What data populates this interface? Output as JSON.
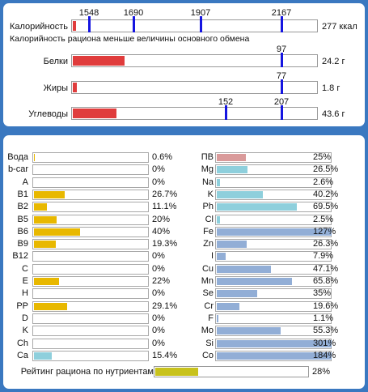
{
  "energy": {
    "calories_label": "Калорийность",
    "calories_value": "277 ккал",
    "calories_fraction": 0.0,
    "calories_marks": [
      "1548",
      "1690",
      "1907",
      "2167"
    ],
    "note": "Калорийность рациона меньше величины основного обмена",
    "proteins_label": "Белки",
    "proteins_value": "24.2 г",
    "proteins_mark": "97",
    "fats_label": "Жиры",
    "fats_value": "1.8 г",
    "fats_mark": "77",
    "carbs_label": "Углеводы",
    "carbs_value": "43.6 г",
    "carbs_marks": [
      "152",
      "207"
    ]
  },
  "colors": {
    "red": "#e03c3c",
    "yellow": "#e8b800",
    "light_blue": "#8ecfdc",
    "steel_blue": "#92aed6",
    "pink": "#d99a9a",
    "olive": "#c8c21c",
    "marker_blue": "#1515e0",
    "background_blue": "#3a78c0"
  },
  "vitamins": [
    {
      "name": "Вода",
      "value": "0.6%",
      "pct": 0.6,
      "color": "#e8b800"
    },
    {
      "name": "b-car",
      "value": "0%",
      "pct": 0,
      "color": "#e8b800"
    },
    {
      "name": "A",
      "value": "0%",
      "pct": 0,
      "color": "#e8b800"
    },
    {
      "name": "B1",
      "value": "26.7%",
      "pct": 26.7,
      "color": "#e8b800"
    },
    {
      "name": "B2",
      "value": "11.1%",
      "pct": 11.1,
      "color": "#e8b800"
    },
    {
      "name": "B5",
      "value": "20%",
      "pct": 20,
      "color": "#e8b800"
    },
    {
      "name": "B6",
      "value": "40%",
      "pct": 40,
      "color": "#e8b800"
    },
    {
      "name": "B9",
      "value": "19.3%",
      "pct": 19.3,
      "color": "#e8b800"
    },
    {
      "name": "B12",
      "value": "0%",
      "pct": 0,
      "color": "#e8b800"
    },
    {
      "name": "C",
      "value": "0%",
      "pct": 0,
      "color": "#e8b800"
    },
    {
      "name": "E",
      "value": "22%",
      "pct": 22,
      "color": "#e8b800"
    },
    {
      "name": "H",
      "value": "0%",
      "pct": 0,
      "color": "#e8b800"
    },
    {
      "name": "PP",
      "value": "29.1%",
      "pct": 29.1,
      "color": "#e8b800"
    },
    {
      "name": "D",
      "value": "0%",
      "pct": 0,
      "color": "#e8b800"
    },
    {
      "name": "K",
      "value": "0%",
      "pct": 0,
      "color": "#e8b800"
    },
    {
      "name": "Ch",
      "value": "0%",
      "pct": 0,
      "color": "#e8b800"
    },
    {
      "name": "Ca",
      "value": "15.4%",
      "pct": 15.4,
      "color": "#8ecfdc"
    }
  ],
  "minerals": [
    {
      "name": "ПВ",
      "value": "25%",
      "pct": 25,
      "color": "#d99a9a"
    },
    {
      "name": "Mg",
      "value": "26.5%",
      "pct": 26.5,
      "color": "#8ecfdc"
    },
    {
      "name": "Na",
      "value": "2.6%",
      "pct": 2.6,
      "color": "#8ecfdc"
    },
    {
      "name": "K",
      "value": "40.2%",
      "pct": 40.2,
      "color": "#8ecfdc"
    },
    {
      "name": "Ph",
      "value": "69.5%",
      "pct": 69.5,
      "color": "#8ecfdc"
    },
    {
      "name": "Cl",
      "value": "2.5%",
      "pct": 2.5,
      "color": "#8ecfdc"
    },
    {
      "name": "Fe",
      "value": "127%",
      "pct": 127,
      "color": "#92aed6"
    },
    {
      "name": "Zn",
      "value": "26.3%",
      "pct": 26.3,
      "color": "#92aed6"
    },
    {
      "name": "I",
      "value": "7.9%",
      "pct": 7.9,
      "color": "#92aed6"
    },
    {
      "name": "Cu",
      "value": "47.1%",
      "pct": 47.1,
      "color": "#92aed6"
    },
    {
      "name": "Mn",
      "value": "65.8%",
      "pct": 65.8,
      "color": "#92aed6"
    },
    {
      "name": "Se",
      "value": "35%",
      "pct": 35,
      "color": "#92aed6"
    },
    {
      "name": "Cr",
      "value": "19.6%",
      "pct": 19.6,
      "color": "#92aed6"
    },
    {
      "name": "F",
      "value": "1.1%",
      "pct": 1.1,
      "color": "#92aed6"
    },
    {
      "name": "Mo",
      "value": "55.3%",
      "pct": 55.3,
      "color": "#92aed6"
    },
    {
      "name": "Si",
      "value": "301%",
      "pct": 301,
      "color": "#92aed6"
    },
    {
      "name": "Co",
      "value": "184%",
      "pct": 184,
      "color": "#92aed6"
    }
  ],
  "rating": {
    "label": "Рейтинг рациона по нутриентам",
    "value": "28%",
    "pct": 28,
    "color": "#c8c21c"
  }
}
